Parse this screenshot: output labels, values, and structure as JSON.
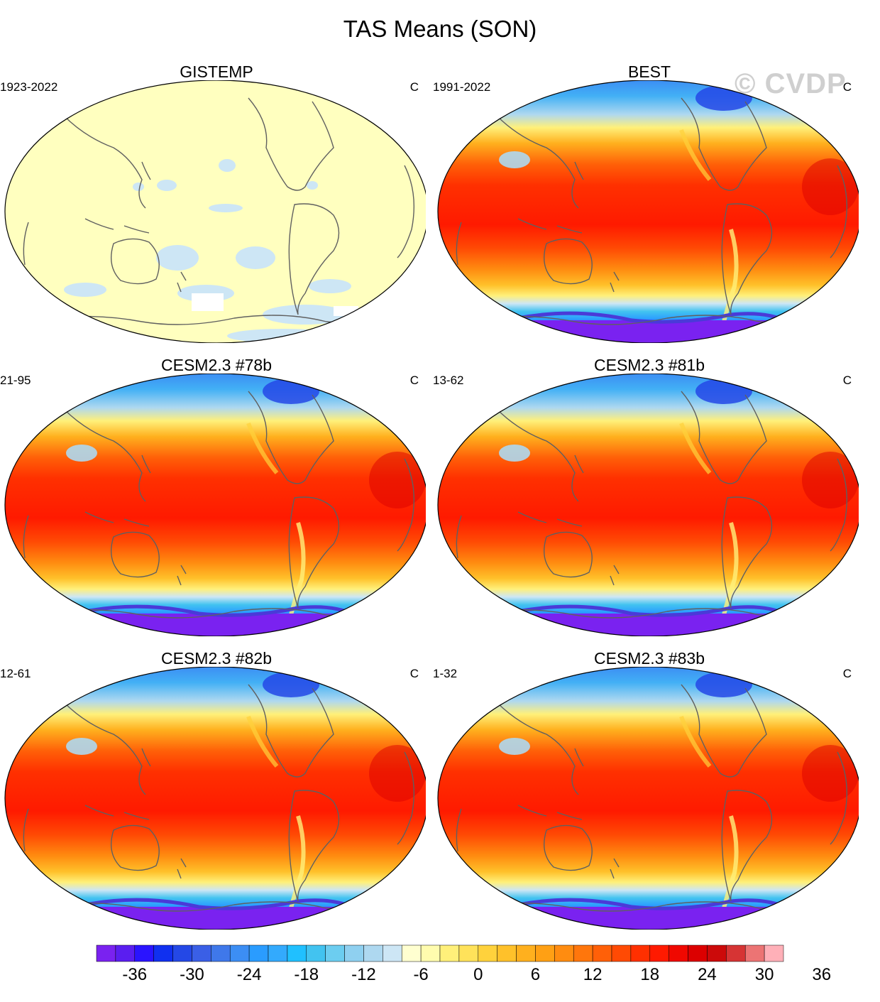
{
  "figure": {
    "title": "TAS Means (SON)",
    "watermark": "© CVDP"
  },
  "panels": [
    {
      "name": "GISTEMP",
      "period": "1923-2022",
      "units": "C",
      "style": "sparse"
    },
    {
      "name": "BEST",
      "period": "1991-2022",
      "units": "C",
      "style": "full"
    },
    {
      "name": "CESM2.3 #78b",
      "period": "21-95",
      "units": "C",
      "style": "full"
    },
    {
      "name": "CESM2.3 #81b",
      "period": "13-62",
      "units": "C",
      "style": "full"
    },
    {
      "name": "CESM2.3 #82b",
      "period": "12-61",
      "units": "C",
      "style": "full"
    },
    {
      "name": "CESM2.3 #83b",
      "period": "1-32",
      "units": "C",
      "style": "full"
    }
  ],
  "colorbar": {
    "labels": [
      "-36",
      "-30",
      "-24",
      "-18",
      "-12",
      "-6",
      "0",
      "6",
      "12",
      "18",
      "24",
      "30",
      "36"
    ],
    "colors": [
      "#7a22f0",
      "#5a1ef0",
      "#2a14ff",
      "#1030f0",
      "#2448e6",
      "#3a5fe6",
      "#3f78ea",
      "#3c8ef4",
      "#2a9cff",
      "#33aafd",
      "#20c0ff",
      "#42c3f0",
      "#6ccdf0",
      "#8fd0f0",
      "#aed8f0",
      "#cde6f5",
      "#ffffd0",
      "#fffcae",
      "#fff07a",
      "#ffe25a",
      "#ffd23c",
      "#ffc12a",
      "#ffb01e",
      "#ffa014",
      "#ff8c10",
      "#ff760c",
      "#ff6008",
      "#ff4a04",
      "#ff3000",
      "#ff1a00",
      "#f00800",
      "#dc0000",
      "#cc0a0a",
      "#d63434",
      "#ec7474",
      "#ffb0b8"
    ]
  }
}
